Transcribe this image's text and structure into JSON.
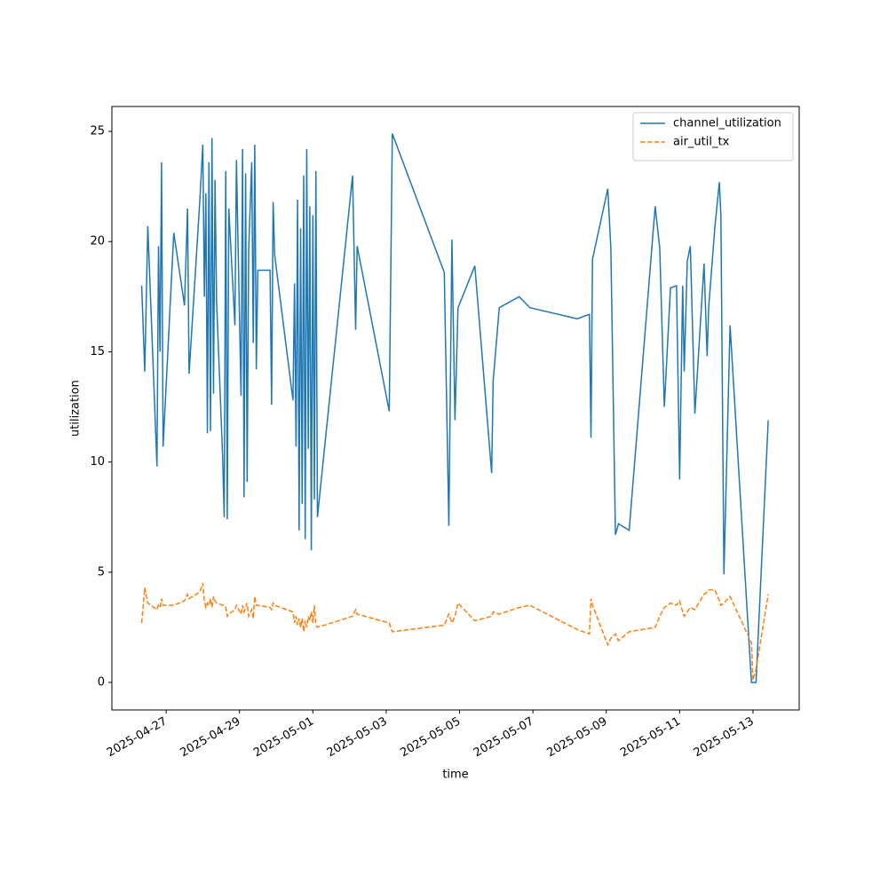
{
  "chart_data": {
    "type": "line",
    "x_label": "time",
    "y_label": "utilization",
    "x": [
      "2025-04-26T08:00",
      "2025-04-26T10:00",
      "2025-04-26T12:00",
      "2025-04-26T18:00",
      "2025-04-26T19:00",
      "2025-04-26T20:00",
      "2025-04-26T21:00",
      "2025-04-26T22:00",
      "2025-04-27T05:00",
      "2025-04-27T12:00",
      "2025-04-27T14:00",
      "2025-04-27T15:00",
      "2025-04-27T22:00",
      "2025-04-28T00:00",
      "2025-04-28T01:00",
      "2025-04-28T02:00",
      "2025-04-28T03:00",
      "2025-04-28T04:00",
      "2025-04-28T05:00",
      "2025-04-28T06:00",
      "2025-04-28T07:00",
      "2025-04-28T08:00",
      "2025-04-28T09:00",
      "2025-04-28T13:00",
      "2025-04-28T14:00",
      "2025-04-28T15:00",
      "2025-04-28T16:00",
      "2025-04-28T17:00",
      "2025-04-28T21:00",
      "2025-04-28T22:00",
      "2025-04-29T01:00",
      "2025-04-29T02:00",
      "2025-04-29T03:00",
      "2025-04-29T04:00",
      "2025-04-29T05:00",
      "2025-04-29T06:00",
      "2025-04-29T08:00",
      "2025-04-29T09:00",
      "2025-04-29T10:00",
      "2025-04-29T11:00",
      "2025-04-29T12:00",
      "2025-04-29T20:00",
      "2025-04-29T21:00",
      "2025-04-29T22:00",
      "2025-04-29T23:00",
      "2025-04-30T11:00",
      "2025-04-30T12:00",
      "2025-04-30T13:00",
      "2025-04-30T14:00",
      "2025-04-30T15:00",
      "2025-04-30T16:00",
      "2025-04-30T17:00",
      "2025-04-30T18:00",
      "2025-04-30T19:00",
      "2025-04-30T20:00",
      "2025-04-30T21:00",
      "2025-04-30T22:00",
      "2025-04-30T23:00",
      "2025-05-01T00:00",
      "2025-05-01T01:00",
      "2025-05-01T02:00",
      "2025-05-01T03:00",
      "2025-05-02T02:00",
      "2025-05-02T04:00",
      "2025-05-02T05:00",
      "2025-05-03T02:00",
      "2025-05-03T04:00",
      "2025-05-04T14:00",
      "2025-05-04T17:00",
      "2025-05-04T19:00",
      "2025-05-04T21:00",
      "2025-05-04T23:00",
      "2025-05-05T10:00",
      "2025-05-05T21:00",
      "2025-05-05T22:00",
      "2025-05-06T02:00",
      "2025-05-06T15:00",
      "2025-05-06T22:00",
      "2025-05-08T05:00",
      "2025-05-08T13:00",
      "2025-05-08T14:00",
      "2025-05-08T15:00",
      "2025-05-09T01:00",
      "2025-05-09T03:00",
      "2025-05-09T06:00",
      "2025-05-09T08:00",
      "2025-05-09T15:00",
      "2025-05-10T08:00",
      "2025-05-10T11:00",
      "2025-05-10T14:00",
      "2025-05-10T18:00",
      "2025-05-10T22:00",
      "2025-05-11T00:00",
      "2025-05-11T02:00",
      "2025-05-11T03:00",
      "2025-05-11T05:00",
      "2025-05-11T07:00",
      "2025-05-11T10:00",
      "2025-05-11T16:00",
      "2025-05-11T18:00",
      "2025-05-11T19:00",
      "2025-05-11T23:00",
      "2025-05-12T02:00",
      "2025-05-12T03:00",
      "2025-05-12T05:00",
      "2025-05-12T09:00",
      "2025-05-12T23:00",
      "2025-05-13T00:00",
      "2025-05-13T02:00",
      "2025-05-13T10:00"
    ],
    "series": [
      {
        "name": "channel_utilization",
        "color": "#1f77b4",
        "dash": "solid",
        "values": [
          18.0,
          14.1,
          20.7,
          9.8,
          19.8,
          15.0,
          23.6,
          10.7,
          20.4,
          17.1,
          21.5,
          14.0,
          21.8,
          24.4,
          17.5,
          22.2,
          11.3,
          23.6,
          11.4,
          24.7,
          13.1,
          22.8,
          17.3,
          10.2,
          7.5,
          23.2,
          7.4,
          21.5,
          16.2,
          23.7,
          13.0,
          24.2,
          8.4,
          23.1,
          9.1,
          19.6,
          23.6,
          15.4,
          24.4,
          14.2,
          18.7,
          18.7,
          12.6,
          21.8,
          19.4,
          12.8,
          18.1,
          10.7,
          21.9,
          6.9,
          20.6,
          8.1,
          23.0,
          6.5,
          24.2,
          10.6,
          21.6,
          6.0,
          21.2,
          8.3,
          23.2,
          7.5,
          23.0,
          16.0,
          19.8,
          12.3,
          24.9,
          18.6,
          7.1,
          20.1,
          11.9,
          17.0,
          18.9,
          9.5,
          13.7,
          17.0,
          17.5,
          17.0,
          16.5,
          16.7,
          11.1,
          19.2,
          22.4,
          19.7,
          6.7,
          7.2,
          6.9,
          21.6,
          19.7,
          12.5,
          17.9,
          18.0,
          9.2,
          18.0,
          14.1,
          19.1,
          19.8,
          12.2,
          19.0,
          14.8,
          17.0,
          20.6,
          22.7,
          21.2,
          4.9,
          16.2,
          0.0,
          0.0,
          0.0,
          11.9
        ]
      },
      {
        "name": "air_util_tx",
        "color": "#ff7f0e",
        "dash": "dashed",
        "values": [
          2.7,
          4.3,
          3.6,
          3.3,
          3.5,
          3.4,
          3.8,
          3.5,
          3.5,
          3.7,
          4.0,
          3.8,
          4.1,
          4.5,
          3.7,
          3.4,
          3.6,
          3.5,
          3.8,
          3.4,
          3.9,
          3.7,
          3.6,
          3.5,
          3.5,
          3.4,
          3.0,
          3.1,
          3.3,
          3.5,
          3.1,
          3.5,
          3.2,
          3.4,
          3.6,
          3.0,
          3.3,
          2.9,
          3.9,
          3.5,
          3.5,
          3.4,
          3.3,
          3.6,
          3.5,
          3.2,
          2.7,
          3.0,
          2.6,
          2.9,
          2.5,
          2.9,
          2.3,
          2.8,
          2.5,
          3.0,
          2.8,
          3.2,
          2.7,
          3.5,
          2.6,
          2.5,
          3.0,
          3.3,
          3.1,
          2.7,
          2.3,
          2.6,
          3.1,
          2.7,
          3.0,
          3.6,
          2.8,
          3.0,
          3.2,
          3.1,
          3.4,
          3.5,
          2.4,
          2.2,
          3.8,
          3.5,
          1.7,
          2.0,
          2.2,
          1.9,
          2.3,
          2.5,
          3.0,
          3.4,
          3.6,
          3.5,
          3.7,
          3.2,
          3.0,
          3.2,
          3.4,
          3.3,
          4.0,
          4.1,
          4.2,
          4.2,
          3.7,
          3.5,
          3.6,
          3.9,
          1.8,
          0.1,
          0.6,
          4.0
        ]
      }
    ],
    "xlim": [
      "2025-04-25T12:30",
      "2025-05-14T06:15"
    ],
    "xticks": [
      "2025-04-27",
      "2025-04-29",
      "2025-05-01",
      "2025-05-03",
      "2025-05-05",
      "2025-05-07",
      "2025-05-09",
      "2025-05-11",
      "2025-05-13"
    ],
    "ylim": [
      -1.25,
      26.13
    ],
    "yticks": [
      0,
      5,
      10,
      15,
      20,
      25
    ],
    "grid": false,
    "legend": "upper right"
  }
}
